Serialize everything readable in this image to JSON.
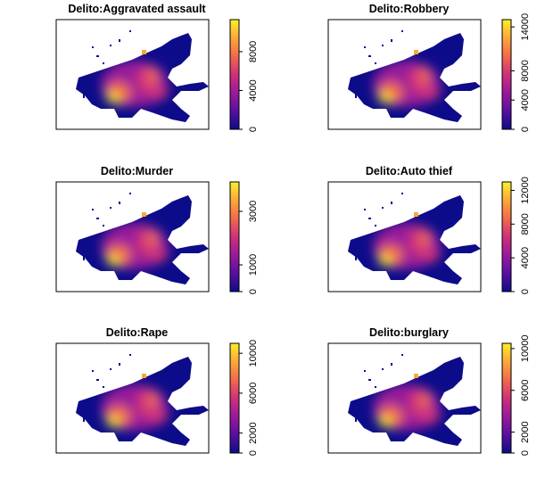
{
  "palette": [
    "#0c0c8a",
    "#5a0fa0",
    "#9a1a9a",
    "#d0307a",
    "#f26a4a",
    "#fba83a",
    "#fcee2a"
  ],
  "chart_data": [
    {
      "type": "raster",
      "title": "Delito:Aggravated assault",
      "ylim": [
        0,
        11300
      ],
      "yticks": [
        0,
        4000,
        8000
      ]
    },
    {
      "type": "raster",
      "title": "Delito:Robbery",
      "ylim": [
        0,
        15000
      ],
      "yticks": [
        0,
        4000,
        8000,
        14000
      ]
    },
    {
      "type": "raster",
      "title": "Delito:Murder",
      "ylim": [
        0,
        4100
      ],
      "yticks": [
        0,
        1000,
        3000
      ]
    },
    {
      "type": "raster",
      "title": "Delito:Auto thief",
      "ylim": [
        0,
        13000
      ],
      "yticks": [
        0,
        4000,
        8000,
        12000
      ]
    },
    {
      "type": "raster",
      "title": "Delito:Rape",
      "ylim": [
        0,
        11000
      ],
      "yticks": [
        0,
        2000,
        6000,
        10000
      ]
    },
    {
      "type": "raster",
      "title": "Delito:burglary",
      "ylim": [
        0,
        10500
      ],
      "yticks": [
        0,
        2000,
        6000,
        10000
      ]
    }
  ]
}
